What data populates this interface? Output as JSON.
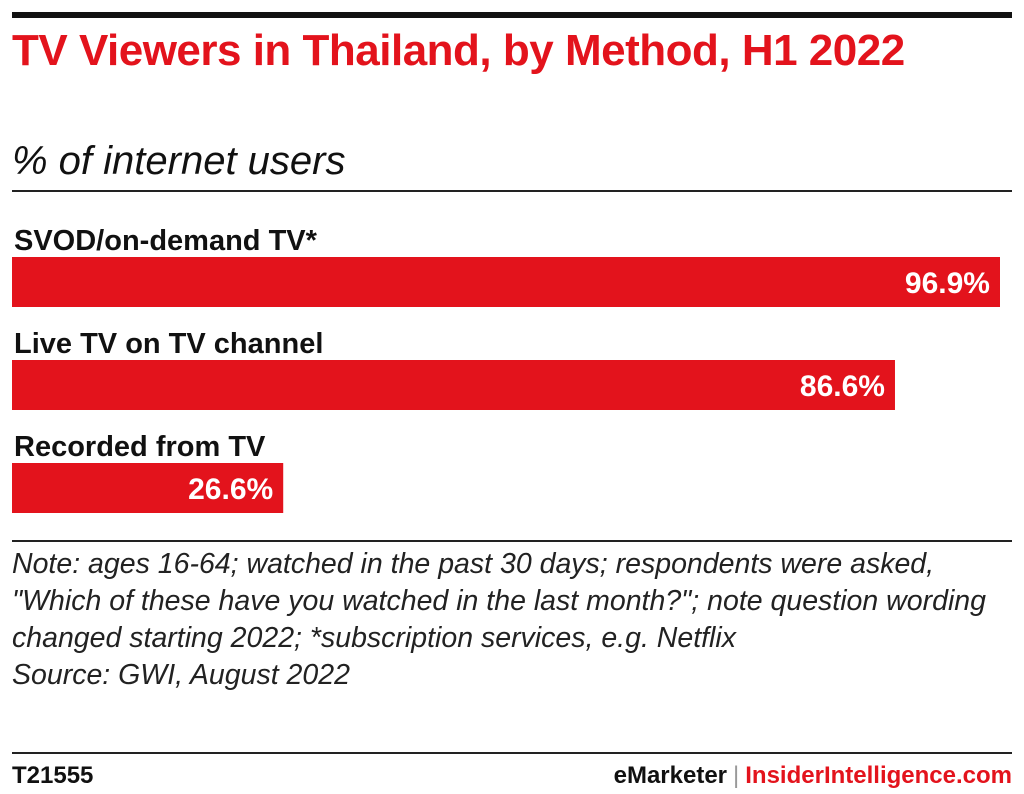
{
  "title": "TV Viewers in Thailand, by Method, H1 2022",
  "subtitle": "% of internet users",
  "chart_data": {
    "type": "bar",
    "orientation": "horizontal",
    "categories": [
      "SVOD/on-demand TV*",
      "Live TV on TV channel",
      "Recorded from TV"
    ],
    "values": [
      96.9,
      86.6,
      26.6
    ],
    "value_labels": [
      "96.9%",
      "86.6%",
      "26.6%"
    ],
    "bar_color": "#e3131c",
    "xlim": [
      0,
      96.9
    ],
    "grid": false,
    "legend": "none"
  },
  "note": "Note: ages 16-64; watched in the past 30 days; respondents were asked, \"Which of these have you watched in the last month?\"; note question wording changed starting 2022; *subscription services, e.g. Netflix",
  "source": "Source: GWI, August 2022",
  "footer": {
    "chart_id": "T21555",
    "brand_left": "eMarketer",
    "separator": "|",
    "brand_right": "InsiderIntelligence.com"
  }
}
